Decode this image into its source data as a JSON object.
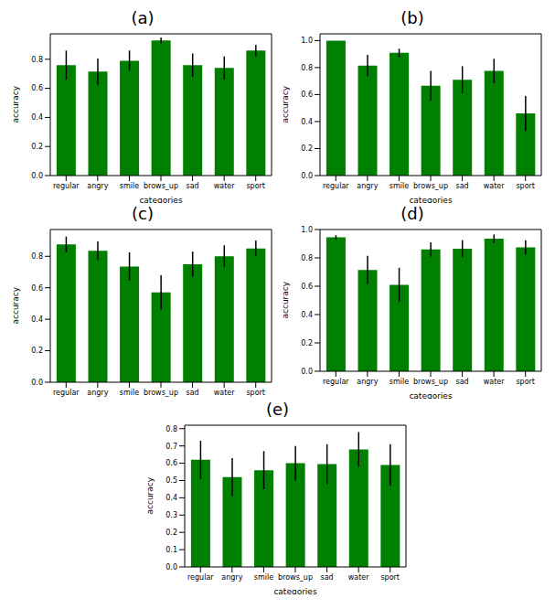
{
  "chart_data": [
    {
      "type": "bar",
      "title": "(a)",
      "x_label": "categories",
      "y_label": "accuracy",
      "color": "#008000",
      "categories": [
        "regular",
        "angry",
        "smile",
        "brows_up",
        "sad",
        "water",
        "sport"
      ],
      "values": [
        0.76,
        0.715,
        0.79,
        0.93,
        0.76,
        0.74,
        0.86
      ],
      "errors": [
        0.1,
        0.09,
        0.07,
        0.02,
        0.08,
        0.08,
        0.04
      ],
      "ylim": [
        0,
        0.975
      ],
      "yticks": [
        {
          "value": 0,
          "label": "0.0"
        },
        0.2,
        0.4,
        0.6,
        0.8
      ]
    },
    {
      "type": "bar",
      "title": "(b)",
      "x_label": "categories",
      "y_label": "accuracy",
      "color": "#008000",
      "categories": [
        "regular",
        "angry",
        "smile",
        "brows_up",
        "sad",
        "water",
        "sport"
      ],
      "values": [
        1.0,
        0.815,
        0.91,
        0.665,
        0.71,
        0.775,
        0.46
      ],
      "errors": [
        0,
        0.08,
        0.03,
        0.11,
        0.1,
        0.09,
        0.13
      ],
      "ylim": [
        0,
        1.05
      ],
      "yticks": [
        {
          "value": 0,
          "label": "0.0"
        },
        0.2,
        0.4,
        0.6,
        0.8,
        {
          "value": 1,
          "label": "1.0"
        }
      ]
    },
    {
      "type": "bar",
      "title": "(c)",
      "y_label": "accuracy",
      "color": "#008000",
      "categories": [
        "regular",
        "angry",
        "smile",
        "brows_up",
        "sad",
        "water",
        "sport"
      ],
      "values": [
        0.875,
        0.835,
        0.735,
        0.57,
        0.75,
        0.8,
        0.85
      ],
      "errors": [
        0.05,
        0.06,
        0.09,
        0.11,
        0.08,
        0.07,
        0.05
      ],
      "ylim": [
        0,
        0.97
      ],
      "yticks": [
        {
          "value": 0,
          "label": "0.0"
        },
        0.2,
        0.4,
        0.6,
        0.8
      ]
    },
    {
      "type": "bar",
      "title": "(d)",
      "x_label": "categories",
      "y_label": "accuracy",
      "color": "#008000",
      "categories": [
        "regular",
        "angry",
        "smile",
        "brows_up",
        "sad",
        "water",
        "sport"
      ],
      "values": [
        0.945,
        0.715,
        0.61,
        0.86,
        0.865,
        0.935,
        0.875
      ],
      "errors": [
        0.015,
        0.1,
        0.12,
        0.05,
        0.06,
        0.03,
        0.05
      ],
      "ylim": [
        0,
        1.0
      ],
      "yticks": [
        {
          "value": 0,
          "label": "0.0"
        },
        0.2,
        0.4,
        0.6,
        0.8,
        {
          "value": 1,
          "label": "1.0"
        }
      ]
    },
    {
      "type": "bar",
      "title": "(e)",
      "x_label": "categories",
      "y_label": "accuracy",
      "color": "#008000",
      "categories": [
        "regular",
        "angry",
        "smile",
        "brows_up",
        "sad",
        "water",
        "sport"
      ],
      "values": [
        0.62,
        0.52,
        0.56,
        0.6,
        0.595,
        0.68,
        0.59
      ],
      "errors": [
        0.11,
        0.11,
        0.11,
        0.1,
        0.115,
        0.1,
        0.12
      ],
      "ylim": [
        0,
        0.82
      ],
      "yticks": [
        {
          "value": 0,
          "label": "0.0"
        },
        0.1,
        0.2,
        0.3,
        0.4,
        0.5,
        0.6,
        0.7,
        0.8
      ]
    }
  ]
}
